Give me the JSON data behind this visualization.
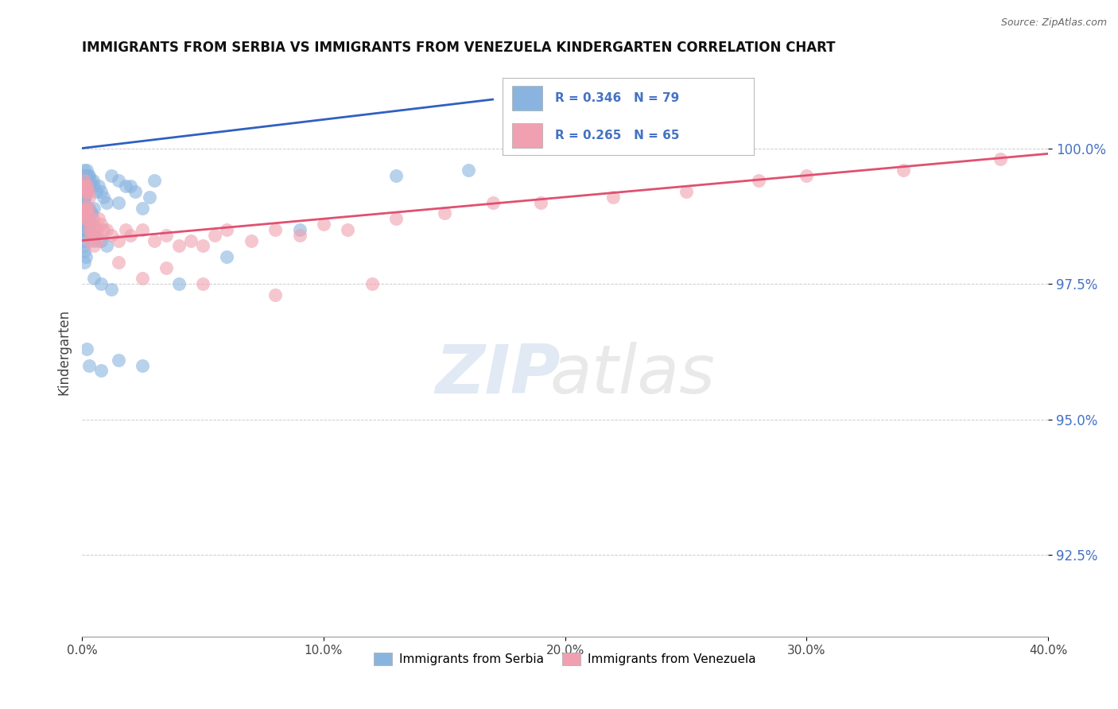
{
  "title": "IMMIGRANTS FROM SERBIA VS IMMIGRANTS FROM VENEZUELA KINDERGARTEN CORRELATION CHART",
  "source": "Source: ZipAtlas.com",
  "ylabel": "Kindergarten",
  "x_min": 0.0,
  "x_max": 40.0,
  "y_min": 91.0,
  "y_max": 101.5,
  "y_ticks": [
    92.5,
    95.0,
    97.5,
    100.0
  ],
  "y_tick_labels": [
    "92.5%",
    "95.0%",
    "97.5%",
    "100.0%"
  ],
  "x_ticks": [
    0.0,
    10.0,
    20.0,
    30.0,
    40.0
  ],
  "x_tick_labels": [
    "0.0%",
    "10.0%",
    "20.0%",
    "30.0%",
    "40.0%"
  ],
  "serbia_color": "#8ab4e0",
  "venezuela_color": "#f0a0b0",
  "serbia_R": 0.346,
  "serbia_N": 79,
  "venezuela_R": 0.265,
  "venezuela_N": 65,
  "serbia_trendline_x": [
    0.0,
    17.0
  ],
  "serbia_trendline_y": [
    100.0,
    100.9
  ],
  "venezuela_trendline_x": [
    0.0,
    40.0
  ],
  "venezuela_trendline_y": [
    98.3,
    99.9
  ],
  "watermark_text": "ZIPatlas",
  "legend_color": "#4472c4",
  "background_color": "#ffffff",
  "serbia_scatter_x": [
    0.05,
    0.08,
    0.1,
    0.12,
    0.15,
    0.18,
    0.2,
    0.22,
    0.25,
    0.28,
    0.05,
    0.08,
    0.1,
    0.12,
    0.15,
    0.18,
    0.2,
    0.05,
    0.08,
    0.1,
    0.05,
    0.08,
    0.1,
    0.12,
    0.05,
    0.08,
    0.1,
    0.05,
    0.08,
    0.05,
    0.3,
    0.35,
    0.4,
    0.45,
    0.5,
    0.6,
    0.7,
    0.8,
    0.9,
    1.0,
    0.3,
    0.4,
    0.5,
    0.3,
    0.4,
    0.3,
    1.2,
    1.5,
    1.8,
    2.2,
    2.8,
    1.5,
    2.5,
    0.5,
    0.8,
    1.0,
    0.2,
    0.3,
    0.5,
    0.1,
    0.15,
    0.08,
    0.5,
    0.8,
    1.2,
    0.2,
    0.3,
    0.8,
    1.5,
    2.5,
    4.0,
    6.0,
    9.0,
    13.0,
    16.0,
    2.0,
    3.0
  ],
  "serbia_scatter_y": [
    99.5,
    99.6,
    99.5,
    99.4,
    99.5,
    99.6,
    99.5,
    99.4,
    99.5,
    99.5,
    99.2,
    99.3,
    99.2,
    99.1,
    99.2,
    99.3,
    99.2,
    99.0,
    99.1,
    99.0,
    98.8,
    98.9,
    98.8,
    98.7,
    98.5,
    98.6,
    98.5,
    98.3,
    98.4,
    98.2,
    99.3,
    99.4,
    99.3,
    99.4,
    99.3,
    99.2,
    99.3,
    99.2,
    99.1,
    99.0,
    98.9,
    98.8,
    98.9,
    98.7,
    98.8,
    98.6,
    99.5,
    99.4,
    99.3,
    99.2,
    99.1,
    99.0,
    98.9,
    98.4,
    98.3,
    98.2,
    98.5,
    98.4,
    98.3,
    98.1,
    98.0,
    97.9,
    97.6,
    97.5,
    97.4,
    96.3,
    96.0,
    95.9,
    96.1,
    96.0,
    97.5,
    98.0,
    98.5,
    99.5,
    99.6,
    99.3,
    99.4
  ],
  "venezuela_scatter_x": [
    0.05,
    0.08,
    0.1,
    0.12,
    0.15,
    0.18,
    0.2,
    0.25,
    0.3,
    0.05,
    0.08,
    0.1,
    0.12,
    0.15,
    0.18,
    0.2,
    0.25,
    0.3,
    0.35,
    0.4,
    0.45,
    0.5,
    0.6,
    0.7,
    0.8,
    0.9,
    0.3,
    0.4,
    0.5,
    0.6,
    0.7,
    1.0,
    1.2,
    1.5,
    1.8,
    2.0,
    2.5,
    3.0,
    3.5,
    4.0,
    4.5,
    5.0,
    5.5,
    6.0,
    7.0,
    8.0,
    9.0,
    10.0,
    11.0,
    13.0,
    15.0,
    17.0,
    19.0,
    22.0,
    25.0,
    28.0,
    30.0,
    34.0,
    38.0,
    1.5,
    2.5,
    3.5,
    5.0,
    8.0,
    12.0
  ],
  "venezuela_scatter_y": [
    99.3,
    99.4,
    99.3,
    99.2,
    99.3,
    99.2,
    99.3,
    99.2,
    99.1,
    98.8,
    98.9,
    98.8,
    98.7,
    98.9,
    98.8,
    98.7,
    98.9,
    98.5,
    98.6,
    98.5,
    98.7,
    98.6,
    98.5,
    98.7,
    98.6,
    98.5,
    98.3,
    98.4,
    98.2,
    98.4,
    98.3,
    98.5,
    98.4,
    98.3,
    98.5,
    98.4,
    98.5,
    98.3,
    98.4,
    98.2,
    98.3,
    98.2,
    98.4,
    98.5,
    98.3,
    98.5,
    98.4,
    98.6,
    98.5,
    98.7,
    98.8,
    99.0,
    99.0,
    99.1,
    99.2,
    99.4,
    99.5,
    99.6,
    99.8,
    97.9,
    97.6,
    97.8,
    97.5,
    97.3,
    97.5
  ]
}
